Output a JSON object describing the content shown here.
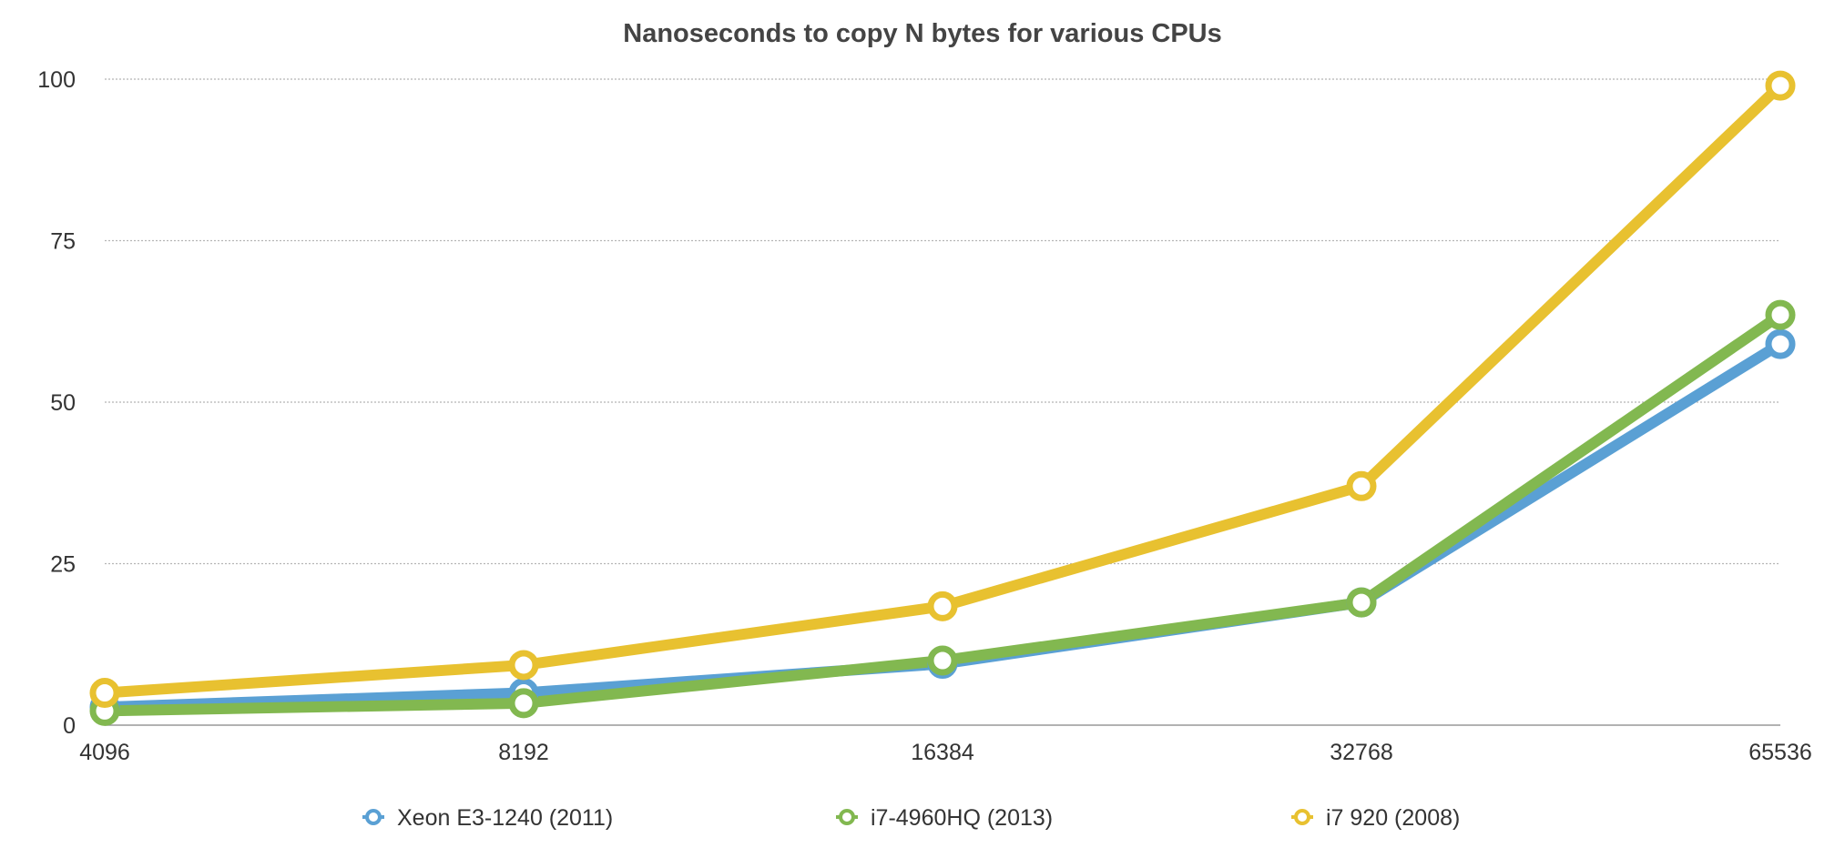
{
  "chart_data": {
    "type": "line",
    "title": "Nanoseconds to copy N bytes for various CPUs",
    "xlabel": "",
    "ylabel": "",
    "categories": [
      "4096",
      "8192",
      "16384",
      "32768",
      "65536"
    ],
    "ylim": [
      0,
      100
    ],
    "yticks": [
      0,
      25,
      50,
      75,
      100
    ],
    "grid": true,
    "legend_position": "bottom",
    "series": [
      {
        "name": "Xeon E3-1240 (2011)",
        "color": "#5aa0d4",
        "values": [
          2.8,
          5.0,
          9.5,
          19.0,
          59.0
        ]
      },
      {
        "name": "i7-4960HQ (2013)",
        "color": "#82b850",
        "values": [
          2.2,
          3.4,
          10.0,
          19.0,
          63.5
        ]
      },
      {
        "name": "i7 920 (2008)",
        "color": "#e8c130",
        "values": [
          5.0,
          9.3,
          18.4,
          37.0,
          99.0
        ]
      }
    ]
  }
}
